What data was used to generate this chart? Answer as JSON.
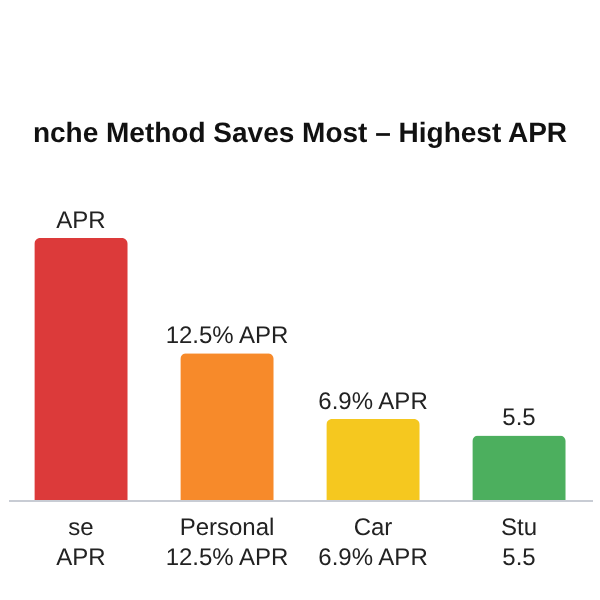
{
  "chart_data": {
    "type": "bar",
    "title": "nche Method Saves Most – Highest APR",
    "tick_labels": "x",
    "categories": [
      "se\nAPR",
      "Personal\n12.5% APR",
      "Car\n6.9% APR",
      "Stu\n5.5"
    ],
    "values": [
      22.3,
      12.5,
      6.9,
      5.5
    ],
    "colors": [
      "#dc3a3a",
      "#f78a2a",
      "#f5c81f",
      "#4caf5e"
    ],
    "value_labels": [
      "APR",
      "12.5% APR",
      "6.9% APR",
      "5.5"
    ]
  }
}
